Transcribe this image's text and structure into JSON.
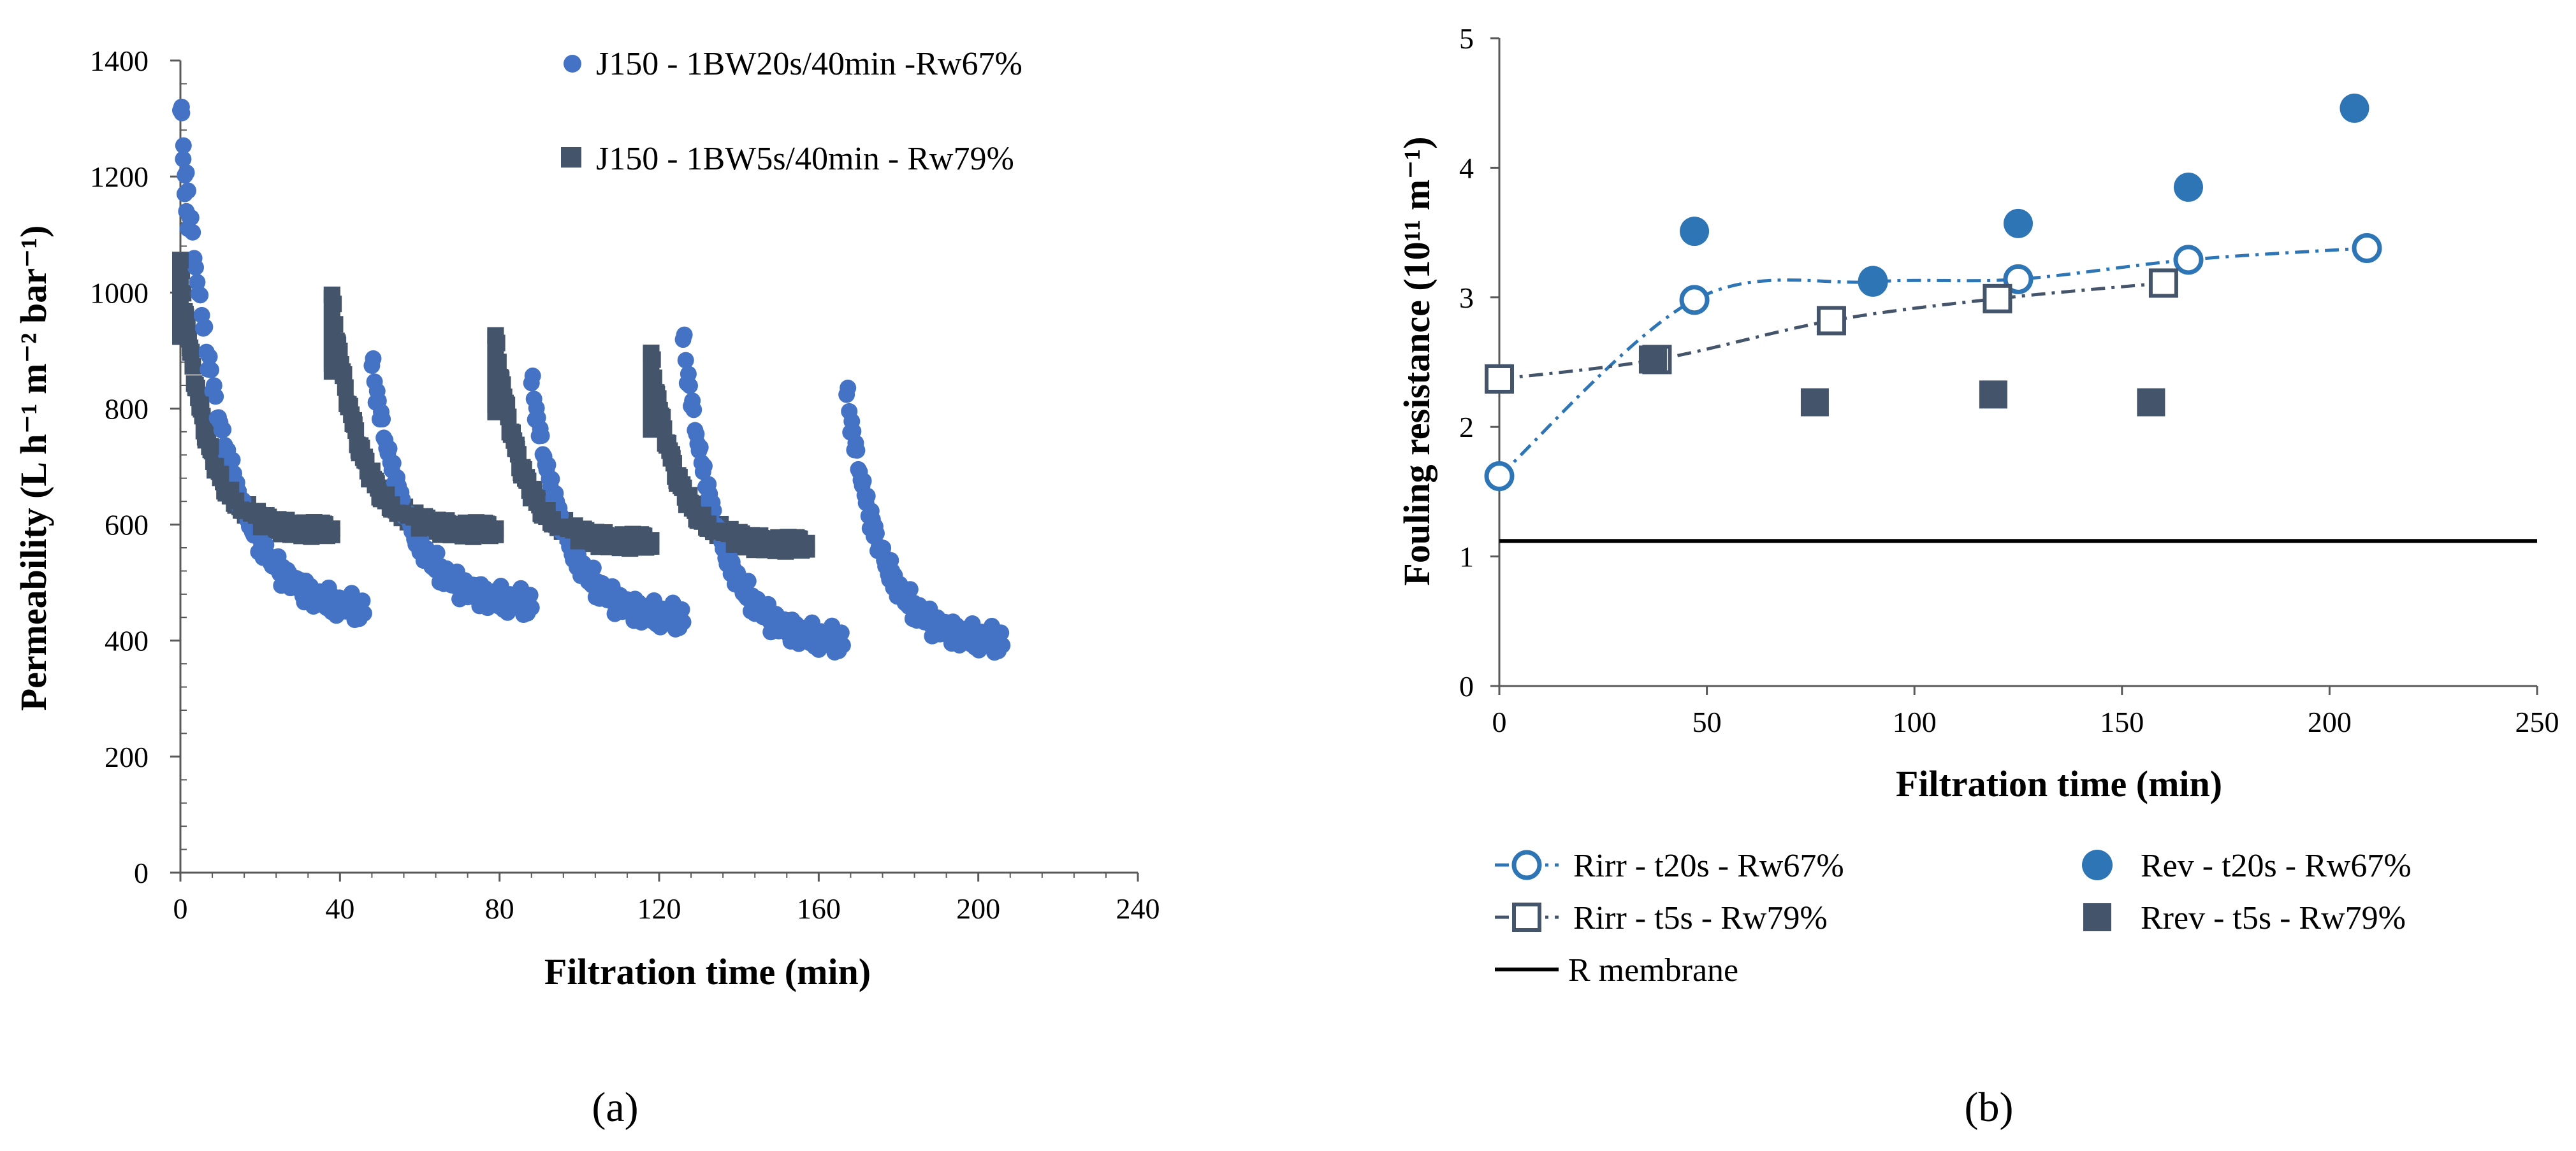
{
  "colors": {
    "blue": "#4472C4",
    "dark": "#44546A",
    "rblue": "#2E75B6",
    "rslate": "#44546A",
    "black": "#000000"
  },
  "panel_labels": {
    "a": "(a)",
    "b": "(b)"
  },
  "chart_data": [
    {
      "id": "a",
      "type": "scatter",
      "title": "",
      "xlabel": "Filtration time  (min)",
      "ylabel": "Permeability (L h⁻¹ m⁻² bar⁻¹)",
      "xlim": [
        0,
        240
      ],
      "ylim": [
        0,
        1400
      ],
      "xticks": [
        0,
        40,
        80,
        120,
        160,
        200,
        240
      ],
      "yticks": [
        0,
        200,
        400,
        600,
        800,
        1000,
        1200,
        1400
      ],
      "legend_position": "top-right",
      "series": [
        {
          "name": "J150 - 1BW20s/40min -Rw67%",
          "marker": "circle",
          "color": "#4472C4",
          "cycles": [
            {
              "t_start": 0,
              "t_end": 46,
              "p_start": 1320,
              "p_end": 455,
              "spike": [
                1320,
                1230,
                1170,
                1140,
                1110
              ]
            },
            {
              "t_start": 48,
              "t_end": 88,
              "p_start": 880,
              "p_end": 465
            },
            {
              "t_start": 88,
              "t_end": 126,
              "p_start": 850,
              "p_end": 440
            },
            {
              "t_start": 126,
              "t_end": 166,
              "p_start": 925,
              "p_end": 400
            },
            {
              "t_start": 167,
              "t_end": 206,
              "p_start": 830,
              "p_end": 400
            }
          ]
        },
        {
          "name": "J150 - 1BW5s/40min - Rw79%",
          "marker": "square",
          "color": "#44546A",
          "cycles": [
            {
              "t_start": 0,
              "t_end": 38,
              "p_start": 1050,
              "p_end": 590
            },
            {
              "t_start": 38,
              "t_end": 79,
              "p_start": 990,
              "p_end": 590
            },
            {
              "t_start": 79,
              "t_end": 118,
              "p_start": 920,
              "p_end": 570
            },
            {
              "t_start": 118,
              "t_end": 157,
              "p_start": 890,
              "p_end": 565
            }
          ]
        }
      ]
    },
    {
      "id": "b",
      "type": "scatter",
      "title": "",
      "xlabel": "Filtration time (min)",
      "ylabel": "Fouling resistance (10¹¹ m⁻¹)",
      "xlim": [
        0,
        250
      ],
      "ylim": [
        0,
        5
      ],
      "xticks": [
        0,
        50,
        100,
        150,
        200,
        250
      ],
      "yticks": [
        0,
        1,
        2,
        3,
        4,
        5
      ],
      "legend_position": "bottom",
      "series": [
        {
          "name": "Rirr - t20s - Rw67%",
          "marker": "open-circle",
          "line": "dash-dot",
          "color": "#2E75B6",
          "x": [
            0,
            47,
            90,
            125,
            166,
            209
          ],
          "y": [
            1.62,
            2.98,
            3.12,
            3.14,
            3.29,
            3.38
          ]
        },
        {
          "name": "Rev - t20s - Rw67%",
          "marker": "filled-circle",
          "line": "none",
          "color": "#2E75B6",
          "x": [
            47,
            90,
            125,
            166,
            206
          ],
          "y": [
            3.51,
            3.13,
            3.57,
            3.85,
            4.46
          ]
        },
        {
          "name": "Rirr - t5s - Rw79%",
          "marker": "open-square",
          "line": "dash-dot",
          "color": "#44546A",
          "x": [
            0,
            38,
            80,
            120,
            160
          ],
          "y": [
            2.37,
            2.52,
            2.82,
            2.99,
            3.11
          ]
        },
        {
          "name": "Rrev - t5s - Rw79%",
          "marker": "filled-square",
          "line": "none",
          "color": "#44546A",
          "x": [
            37,
            76,
            119,
            157
          ],
          "y": [
            2.52,
            2.19,
            2.25,
            2.19
          ]
        },
        {
          "name": "R membrane",
          "marker": "none",
          "line": "solid",
          "color": "#000000",
          "x": [
            0,
            250
          ],
          "y": [
            1.12,
            1.12
          ]
        }
      ]
    }
  ]
}
